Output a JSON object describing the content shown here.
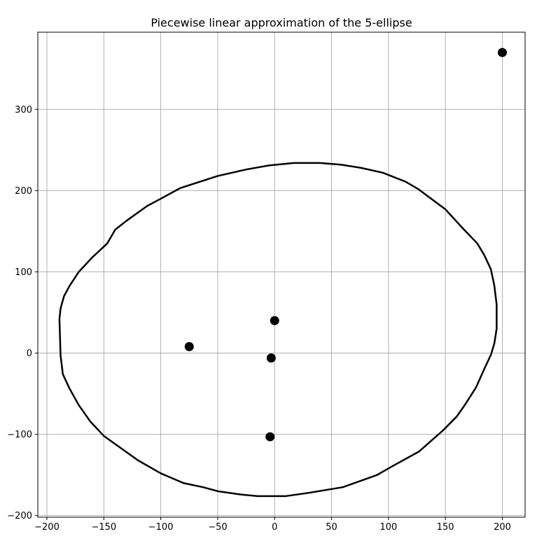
{
  "chart_data": {
    "type": "scatter",
    "title": "Piecewise linear approximation of the 5-ellipse",
    "xlabel": "",
    "ylabel": "",
    "xlim": [
      -208,
      220
    ],
    "ylim": [
      -202,
      395
    ],
    "x_ticks": [
      -200,
      -150,
      -100,
      -50,
      0,
      50,
      100,
      150,
      200
    ],
    "y_ticks": [
      -200,
      -100,
      0,
      100,
      200,
      300
    ],
    "grid": true,
    "colors": {
      "curve": "#000000",
      "points": "#000000",
      "grid": "#b0b0b0",
      "axes": "#000000"
    },
    "foci": [
      {
        "x": 200,
        "y": 370
      },
      {
        "x": -75,
        "y": 8
      },
      {
        "x": 0,
        "y": 40
      },
      {
        "x": -3,
        "y": -6
      },
      {
        "x": -4,
        "y": -103
      }
    ],
    "series": [
      {
        "type": "line",
        "points": [
          [
            -189,
            42
          ],
          [
            -188,
            55
          ],
          [
            -185,
            70
          ],
          [
            -180,
            83
          ],
          [
            -172,
            100
          ],
          [
            -160,
            118
          ],
          [
            -147,
            135
          ],
          [
            -140,
            152
          ],
          [
            -130,
            163
          ],
          [
            -112,
            181
          ],
          [
            -100,
            190
          ],
          [
            -83,
            203
          ],
          [
            -70,
            209
          ],
          [
            -50,
            218
          ],
          [
            -25,
            226
          ],
          [
            -5,
            231
          ],
          [
            17,
            234
          ],
          [
            40,
            234
          ],
          [
            58,
            232
          ],
          [
            76,
            228
          ],
          [
            95,
            222
          ],
          [
            115,
            211
          ],
          [
            126,
            202
          ],
          [
            150,
            177
          ],
          [
            165,
            154
          ],
          [
            178,
            135
          ],
          [
            184,
            121
          ],
          [
            190,
            103
          ],
          [
            193,
            83
          ],
          [
            195,
            60
          ],
          [
            195,
            30
          ],
          [
            193,
            12
          ],
          [
            190,
            -2
          ],
          [
            184,
            -20
          ],
          [
            177,
            -42
          ],
          [
            167,
            -64
          ],
          [
            160,
            -78
          ],
          [
            148,
            -95
          ],
          [
            127,
            -121
          ],
          [
            105,
            -138
          ],
          [
            90,
            -150
          ],
          [
            60,
            -165
          ],
          [
            30,
            -172
          ],
          [
            10,
            -176
          ],
          [
            -15,
            -176
          ],
          [
            -30,
            -174
          ],
          [
            -50,
            -170
          ],
          [
            -63,
            -165
          ],
          [
            -80,
            -160
          ],
          [
            -100,
            -148
          ],
          [
            -120,
            -132
          ],
          [
            -140,
            -112
          ],
          [
            -150,
            -102
          ],
          [
            -162,
            -84
          ],
          [
            -172,
            -64
          ],
          [
            -180,
            -44
          ],
          [
            -186,
            -26
          ],
          [
            -188,
            -3
          ],
          [
            -189,
            42
          ]
        ]
      }
    ]
  }
}
